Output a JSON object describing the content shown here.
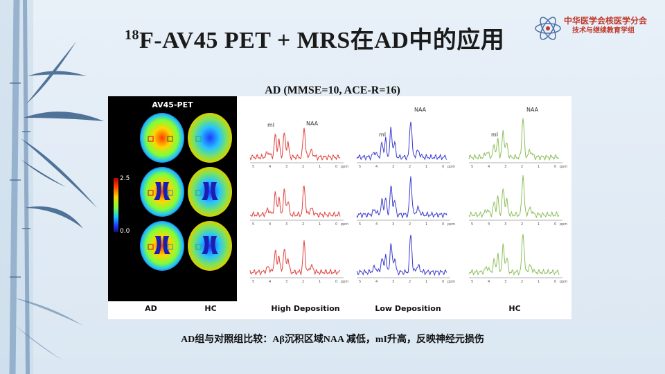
{
  "slide": {
    "title_sup": "18",
    "title_main": "F-AV45 PET + MRS在AD中的应用",
    "org_line1": "中华医学会核医学分会",
    "org_line2": "技术与继续教育学组",
    "subtitle": "AD (MMSE=10, ACE-R=16)",
    "footer": "AD组与对照组比较：Aβ沉积区域NAA 减低，mI升高，反映神经元损伤"
  },
  "figure": {
    "pet_title": "AV45-PET",
    "colorbar_max": "2.5",
    "colorbar_min": "0.0",
    "pet_captions": [
      "AD",
      "HC"
    ],
    "spectra_captions": [
      "High Deposition",
      "Low Deposition",
      "HC"
    ],
    "peak_labels": {
      "mi": "mI",
      "naa": "NAA"
    },
    "axis_ticks": [
      "5",
      "4",
      "3",
      "2",
      "1",
      "0"
    ],
    "axis_unit": "ppm",
    "colors": {
      "high": "#e0403c",
      "low": "#3a3ad0",
      "hc": "#8cbf5a"
    }
  }
}
